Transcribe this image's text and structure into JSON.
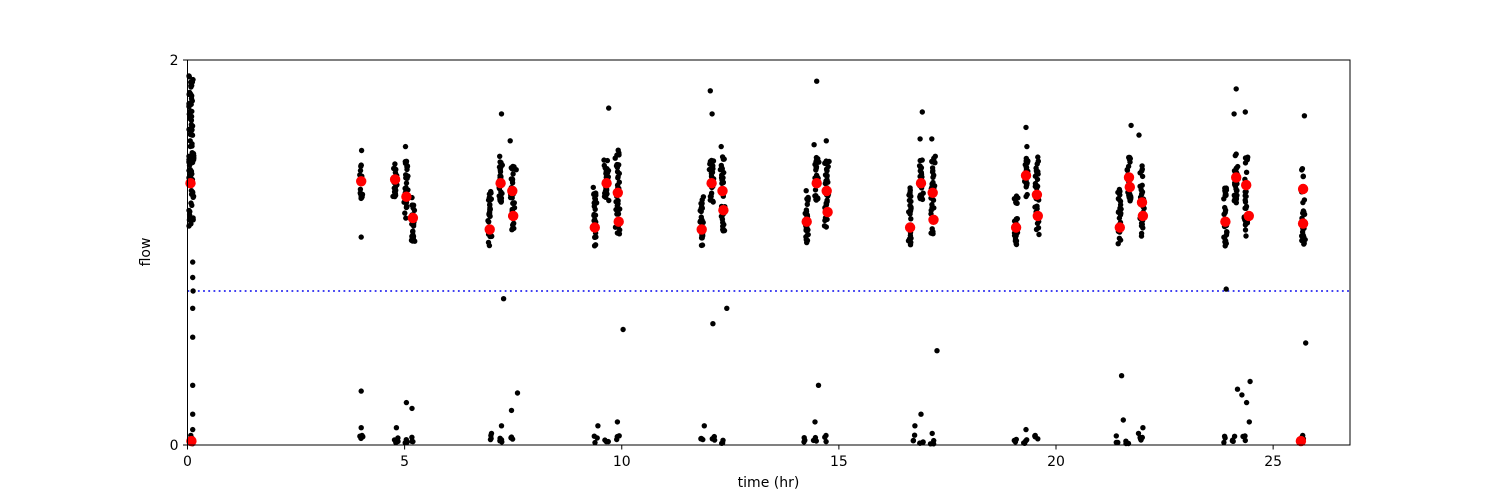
{
  "chart_data": {
    "type": "scatter",
    "title": "",
    "xlabel": "time (hr)",
    "ylabel": "flow",
    "xlim": [
      0,
      26.77
    ],
    "ylim": [
      0,
      2
    ],
    "xticks": [
      0,
      5,
      10,
      15,
      20,
      25
    ],
    "yticks": [
      0,
      2
    ],
    "grid": false,
    "legend": null,
    "threshold_line": {
      "y": 0.8,
      "color": "#0000ee",
      "style": "dotted",
      "x_start": 0,
      "x_end": 26.77
    },
    "series": [
      {
        "name": "flow samples (black dots)",
        "color": "#000000",
        "marker_radius_px": 2.7,
        "streaks": [
          [
            0.08,
            1.13,
            1.92,
            85,
            0.045
          ],
          [
            4.0,
            1.28,
            1.46,
            16,
            0.02
          ],
          [
            4.78,
            1.29,
            1.47,
            26,
            0.025
          ],
          [
            5.04,
            1.17,
            1.5,
            32,
            0.028
          ],
          [
            5.19,
            1.05,
            1.29,
            26,
            0.025
          ],
          [
            6.96,
            1.03,
            1.34,
            30,
            0.025
          ],
          [
            7.21,
            1.24,
            1.47,
            30,
            0.028
          ],
          [
            7.48,
            1.1,
            1.45,
            36,
            0.028
          ],
          [
            9.38,
            1.03,
            1.34,
            30,
            0.025
          ],
          [
            9.65,
            1.27,
            1.48,
            30,
            0.028
          ],
          [
            9.91,
            1.09,
            1.54,
            36,
            0.028
          ],
          [
            11.84,
            1.03,
            1.33,
            30,
            0.025
          ],
          [
            12.07,
            1.25,
            1.48,
            30,
            0.028
          ],
          [
            12.32,
            1.1,
            1.5,
            36,
            0.028
          ],
          [
            14.26,
            1.05,
            1.34,
            30,
            0.025
          ],
          [
            14.49,
            1.27,
            1.5,
            30,
            0.028
          ],
          [
            14.72,
            1.1,
            1.48,
            36,
            0.028
          ],
          [
            16.64,
            1.04,
            1.34,
            30,
            0.025
          ],
          [
            16.89,
            1.27,
            1.48,
            30,
            0.028
          ],
          [
            17.16,
            1.09,
            1.49,
            36,
            0.028
          ],
          [
            19.08,
            1.04,
            1.33,
            30,
            0.025
          ],
          [
            19.31,
            1.28,
            1.52,
            30,
            0.028
          ],
          [
            19.56,
            1.09,
            1.5,
            36,
            0.028
          ],
          [
            21.47,
            1.04,
            1.33,
            30,
            0.025
          ],
          [
            21.68,
            1.26,
            1.5,
            30,
            0.028
          ],
          [
            21.98,
            1.08,
            1.45,
            36,
            0.028
          ],
          [
            23.9,
            1.03,
            1.35,
            30,
            0.025
          ],
          [
            24.15,
            1.25,
            1.52,
            30,
            0.028
          ],
          [
            24.38,
            1.08,
            1.5,
            36,
            0.028
          ],
          [
            25.69,
            1.03,
            1.45,
            28,
            0.025
          ]
        ],
        "points": [
          [
            0.12,
            0.95
          ],
          [
            0.12,
            0.87
          ],
          [
            0.13,
            0.8
          ],
          [
            0.12,
            0.71
          ],
          [
            0.12,
            0.56
          ],
          [
            0.12,
            0.31
          ],
          [
            0.12,
            0.16
          ],
          [
            0.12,
            0.08
          ],
          [
            4.01,
            1.53
          ],
          [
            4.0,
            1.29
          ],
          [
            4.0,
            1.08
          ],
          [
            4.0,
            0.28
          ],
          [
            4.0,
            0.09
          ],
          [
            5.02,
            1.55
          ],
          [
            4.81,
            0.09
          ],
          [
            5.04,
            0.22
          ],
          [
            5.17,
            0.19
          ],
          [
            7.23,
            1.72
          ],
          [
            7.43,
            1.58
          ],
          [
            7.19,
            1.5
          ],
          [
            7.57,
            1.43
          ],
          [
            7.28,
            0.76
          ],
          [
            7.6,
            0.27
          ],
          [
            7.46,
            0.18
          ],
          [
            7.23,
            0.1
          ],
          [
            7.0,
            0.06
          ],
          [
            9.7,
            1.75
          ],
          [
            9.59,
            1.48
          ],
          [
            9.85,
            1.49
          ],
          [
            10.03,
            0.6
          ],
          [
            9.45,
            0.1
          ],
          [
            9.9,
            0.12
          ],
          [
            12.04,
            1.84
          ],
          [
            12.08,
            1.72
          ],
          [
            12.29,
            1.55
          ],
          [
            12.1,
            0.63
          ],
          [
            12.42,
            0.71
          ],
          [
            11.9,
            0.1
          ],
          [
            14.49,
            1.89
          ],
          [
            14.43,
            1.56
          ],
          [
            14.71,
            1.58
          ],
          [
            14.53,
            0.31
          ],
          [
            14.45,
            0.12
          ],
          [
            16.92,
            1.73
          ],
          [
            16.87,
            1.59
          ],
          [
            17.14,
            1.59
          ],
          [
            17.22,
            1.5
          ],
          [
            17.26,
            0.49
          ],
          [
            16.89,
            0.16
          ],
          [
            16.75,
            0.1
          ],
          [
            17.15,
            0.06
          ],
          [
            19.31,
            1.65
          ],
          [
            19.33,
            1.55
          ],
          [
            19.31,
            0.08
          ],
          [
            19.52,
            0.05
          ],
          [
            21.73,
            1.66
          ],
          [
            21.91,
            1.61
          ],
          [
            21.51,
            0.36
          ],
          [
            21.55,
            0.13
          ],
          [
            22.0,
            0.09
          ],
          [
            21.9,
            0.06
          ],
          [
            24.15,
            1.85
          ],
          [
            24.1,
            1.72
          ],
          [
            24.36,
            1.73
          ],
          [
            23.92,
            0.81
          ],
          [
            24.18,
            0.29
          ],
          [
            24.39,
            0.22
          ],
          [
            24.28,
            0.26
          ],
          [
            24.47,
            0.33
          ],
          [
            24.45,
            0.12
          ],
          [
            25.72,
            1.71
          ],
          [
            25.75,
            0.53
          ],
          [
            25.66,
            0.04
          ]
        ],
        "ground_clumps": [
          [
            0.1,
            6
          ],
          [
            4.0,
            4
          ],
          [
            4.81,
            4
          ],
          [
            5.04,
            4
          ],
          [
            5.17,
            3
          ],
          [
            6.98,
            3
          ],
          [
            7.22,
            4
          ],
          [
            7.47,
            3
          ],
          [
            9.4,
            3
          ],
          [
            9.65,
            3
          ],
          [
            9.9,
            3
          ],
          [
            11.85,
            4
          ],
          [
            12.1,
            4
          ],
          [
            12.3,
            3
          ],
          [
            14.2,
            3
          ],
          [
            14.45,
            3
          ],
          [
            14.72,
            3
          ],
          [
            16.75,
            3
          ],
          [
            16.9,
            4
          ],
          [
            17.15,
            3
          ],
          [
            19.06,
            3
          ],
          [
            19.3,
            4
          ],
          [
            19.55,
            3
          ],
          [
            21.4,
            3
          ],
          [
            21.65,
            3
          ],
          [
            21.95,
            4
          ],
          [
            23.85,
            3
          ],
          [
            24.1,
            4
          ],
          [
            24.35,
            3
          ],
          [
            25.66,
            2
          ]
        ]
      },
      {
        "name": "cycle markers (red dots)",
        "color": "#ff0000",
        "marker_radius_px": 5.2,
        "points": [
          [
            0.07,
            1.36
          ],
          [
            0.09,
            0.02
          ],
          [
            4.0,
            1.37
          ],
          [
            4.78,
            1.38
          ],
          [
            5.04,
            1.29
          ],
          [
            5.19,
            1.18
          ],
          [
            6.96,
            1.12
          ],
          [
            7.21,
            1.36
          ],
          [
            7.48,
            1.32
          ],
          [
            7.5,
            1.19
          ],
          [
            9.38,
            1.13
          ],
          [
            9.65,
            1.36
          ],
          [
            9.91,
            1.31
          ],
          [
            9.93,
            1.16
          ],
          [
            11.84,
            1.12
          ],
          [
            12.07,
            1.36
          ],
          [
            12.32,
            1.32
          ],
          [
            12.34,
            1.22
          ],
          [
            14.26,
            1.16
          ],
          [
            14.49,
            1.36
          ],
          [
            14.72,
            1.32
          ],
          [
            14.74,
            1.21
          ],
          [
            16.64,
            1.13
          ],
          [
            16.89,
            1.36
          ],
          [
            17.16,
            1.31
          ],
          [
            17.18,
            1.17
          ],
          [
            19.08,
            1.13
          ],
          [
            19.31,
            1.4
          ],
          [
            19.56,
            1.3
          ],
          [
            19.58,
            1.19
          ],
          [
            21.47,
            1.13
          ],
          [
            21.68,
            1.39
          ],
          [
            21.7,
            1.34
          ],
          [
            21.98,
            1.26
          ],
          [
            22.0,
            1.19
          ],
          [
            23.9,
            1.16
          ],
          [
            24.15,
            1.39
          ],
          [
            24.38,
            1.35
          ],
          [
            24.44,
            1.19
          ],
          [
            25.69,
            1.33
          ],
          [
            25.69,
            1.15
          ],
          [
            25.64,
            0.02
          ]
        ]
      }
    ]
  }
}
